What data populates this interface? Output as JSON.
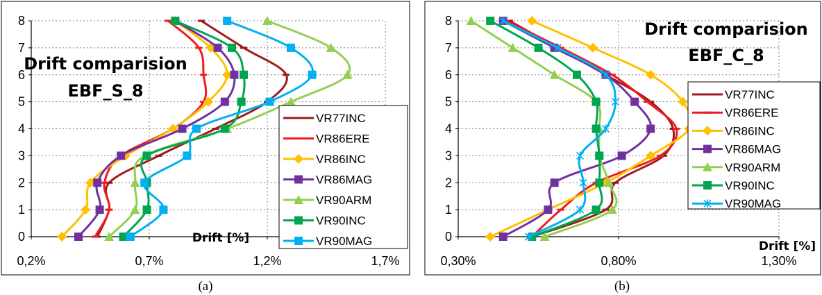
{
  "chart_data": [
    {
      "type": "line",
      "caption": "(a)",
      "title_line1": "Drift comparision",
      "title_line2": "EBF_S_8",
      "xlabel": "Drift [%]",
      "ylabel": "",
      "xlim": [
        0.2,
        1.7
      ],
      "ylim": [
        0,
        8
      ],
      "xtick_values": [
        0.2,
        0.7,
        1.2,
        1.7
      ],
      "xtick_labels": [
        "0,2%",
        "0,7%",
        "1,2%",
        "1,7%"
      ],
      "ytick_labels": [
        "0",
        "1",
        "2",
        "3",
        "4",
        "5",
        "6",
        "7",
        "8"
      ],
      "grid": true,
      "legend_position": "right",
      "series": [
        {
          "name": "VR77INC",
          "color": "#9E1B1B",
          "marker": "dash",
          "x": [
            0.48,
            0.53,
            0.53,
            0.74,
            0.98,
            1.2,
            1.28,
            1.1,
            0.92
          ],
          "y": [
            0,
            1,
            2,
            3,
            4,
            5,
            6,
            7,
            8
          ]
        },
        {
          "name": "VR86ERE",
          "color": "#EE1C1C",
          "marker": "dash",
          "x": [
            0.47,
            0.53,
            0.51,
            0.58,
            0.8,
            0.93,
            0.93,
            0.91,
            0.78
          ],
          "y": [
            0,
            1,
            2,
            3,
            4,
            5,
            6,
            7,
            8
          ]
        },
        {
          "name": "VR86INC",
          "color": "#FFC000",
          "marker": "diamond",
          "x": [
            0.33,
            0.43,
            0.45,
            0.6,
            0.8,
            0.95,
            1.03,
            0.96,
            0.81
          ],
          "y": [
            0,
            1,
            2,
            3,
            4,
            5,
            6,
            7,
            8
          ]
        },
        {
          "name": "VR86MAG",
          "color": "#7030A0",
          "marker": "square",
          "x": [
            0.4,
            0.49,
            0.48,
            0.58,
            0.84,
            1.02,
            1.06,
            0.99,
            0.81
          ],
          "y": [
            0,
            1,
            2,
            3,
            4,
            5,
            6,
            7,
            8
          ]
        },
        {
          "name": "VR90ARM",
          "color": "#92D050",
          "marker": "triangle",
          "x": [
            0.53,
            0.64,
            0.64,
            0.68,
            1.03,
            1.3,
            1.54,
            1.47,
            1.2
          ],
          "y": [
            0,
            1,
            2,
            3,
            4,
            5,
            6,
            7,
            8
          ]
        },
        {
          "name": "VR90INC",
          "color": "#00A550",
          "marker": "square",
          "x": [
            0.59,
            0.69,
            0.69,
            0.69,
            1.02,
            1.09,
            1.1,
            1.05,
            0.81
          ],
          "y": [
            0,
            1,
            2,
            3,
            4,
            5,
            6,
            7,
            8
          ]
        },
        {
          "name": "VR90MAG",
          "color": "#00B0F0",
          "marker": "square",
          "x": [
            0.62,
            0.76,
            0.68,
            0.86,
            0.9,
            1.21,
            1.39,
            1.3,
            1.03
          ],
          "y": [
            0,
            1,
            2,
            3,
            4,
            5,
            6,
            7,
            8
          ]
        }
      ]
    },
    {
      "type": "line",
      "caption": "(b)",
      "title_line1": "Drift comparision",
      "title_line2": "EBF_C_8",
      "xlabel": "Drift [%]",
      "ylabel": "",
      "xlim": [
        0.3,
        1.3
      ],
      "ylim": [
        0,
        8
      ],
      "xtick_values": [
        0.3,
        0.8,
        1.3
      ],
      "xtick_labels": [
        "0,30%",
        "0,80%",
        "1,30%"
      ],
      "ytick_labels": [
        "0",
        "1",
        "2",
        "3",
        "4",
        "5",
        "6",
        "7",
        "8"
      ],
      "grid": true,
      "legend_position": "right",
      "series": [
        {
          "name": "VR77INC",
          "color": "#9E1B1B",
          "marker": "dash",
          "x": [
            0.53,
            0.76,
            0.79,
            0.94,
            0.97,
            0.9,
            0.76,
            0.61,
            0.46
          ],
          "y": [
            0,
            1,
            2,
            3,
            4,
            5,
            6,
            7,
            8
          ]
        },
        {
          "name": "VR86ERE",
          "color": "#EE1C1C",
          "marker": "dash",
          "x": [
            0.53,
            0.62,
            0.73,
            0.93,
            0.98,
            0.89,
            0.78,
            0.62,
            0.45
          ],
          "y": [
            0,
            1,
            2,
            3,
            4,
            5,
            6,
            7,
            8
          ]
        },
        {
          "name": "VR86INC",
          "color": "#FFC000",
          "marker": "diamond",
          "x": [
            0.4,
            0.58,
            0.76,
            0.9,
            1.02,
            1.0,
            0.9,
            0.72,
            0.53
          ],
          "y": [
            0,
            1,
            2,
            3,
            4,
            5,
            6,
            7,
            8
          ]
        },
        {
          "name": "VR86MAG",
          "color": "#7030A0",
          "marker": "square",
          "x": [
            0.44,
            0.58,
            0.6,
            0.81,
            0.9,
            0.85,
            0.76,
            0.6,
            0.44
          ],
          "y": [
            0,
            1,
            2,
            3,
            4,
            5,
            6,
            7,
            8
          ]
        },
        {
          "name": "VR90ARM",
          "color": "#92D050",
          "marker": "triangle",
          "x": [
            0.57,
            0.78,
            0.77,
            0.74,
            0.74,
            0.73,
            0.6,
            0.47,
            0.34
          ],
          "y": [
            0,
            1,
            2,
            3,
            4,
            5,
            6,
            7,
            8
          ]
        },
        {
          "name": "VR90INC",
          "color": "#00A550",
          "marker": "square",
          "x": [
            0.53,
            0.73,
            0.74,
            0.74,
            0.73,
            0.73,
            0.67,
            0.55,
            0.4
          ],
          "y": [
            0,
            1,
            2,
            3,
            4,
            5,
            6,
            7,
            8
          ]
        },
        {
          "name": "VR90MAG",
          "color": "#00B0F0",
          "marker": "star",
          "x": [
            0.52,
            0.68,
            0.69,
            0.68,
            0.76,
            0.79,
            0.76,
            0.61,
            0.44
          ],
          "y": [
            0,
            1,
            2,
            3,
            4,
            5,
            6,
            7,
            8
          ]
        }
      ]
    }
  ]
}
